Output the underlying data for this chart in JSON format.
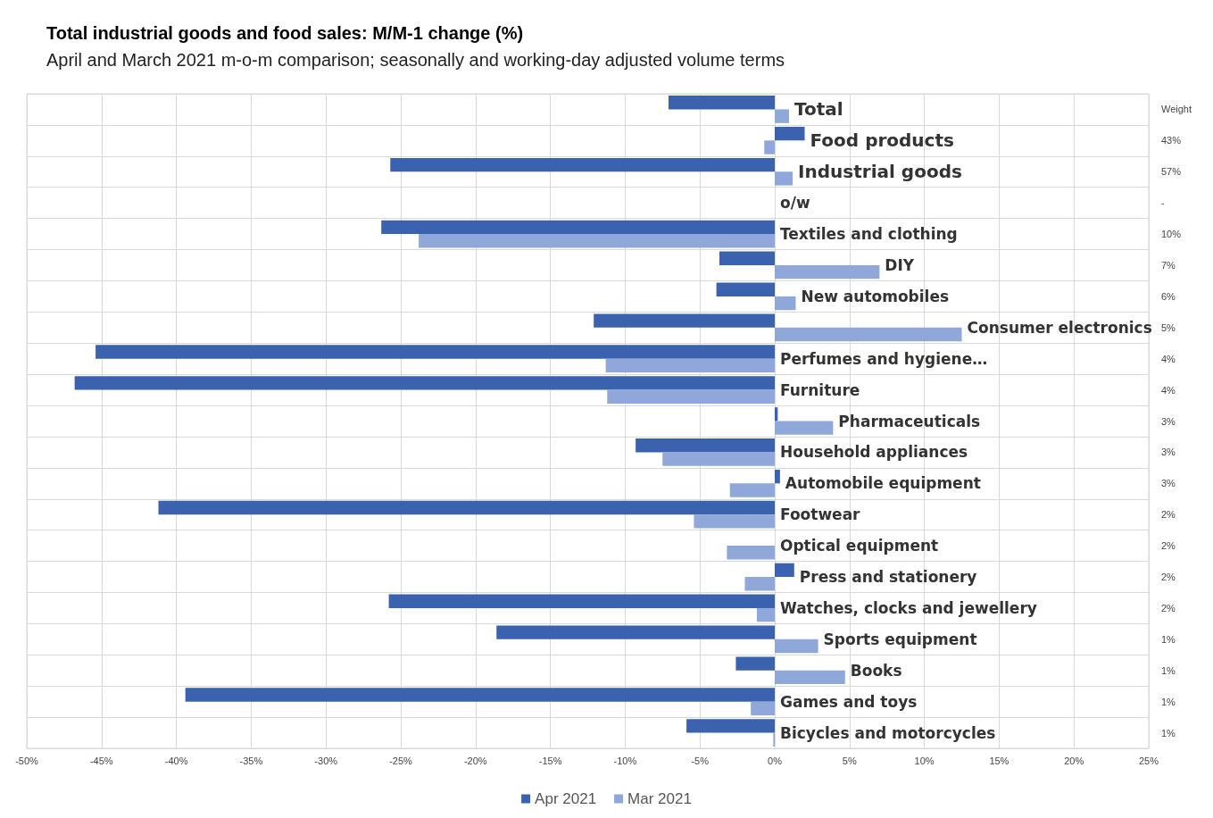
{
  "chart_data": {
    "type": "bar",
    "orientation": "horizontal",
    "title": "Total industrial goods and food sales: M/M-1 change (%)",
    "subtitle": "April and March 2021 m-o-m comparison; seasonally and working-day adjusted volume terms",
    "categories": [
      "Total",
      "Food products",
      "Industrial goods",
      "o/w",
      "Textiles and clothing",
      "DIY",
      "New automobiles",
      "Consumer electronics",
      "Perfumes and hygiene…",
      "Furniture",
      "Pharmaceuticals",
      "Household appliances",
      "Automobile equipment",
      "Footwear",
      "Optical equipment",
      "Press and stationery",
      "Watches, clocks and jewellery",
      "Sports equipment",
      "Books",
      "Games and toys",
      "Bicycles and motorcycles"
    ],
    "y2_categories": [
      "Weight",
      "43%",
      "57%",
      "-",
      "10%",
      "7%",
      "6%",
      "5%",
      "4%",
      "4%",
      "3%",
      "3%",
      "3%",
      "2%",
      "2%",
      "2%",
      "2%",
      "1%",
      "1%",
      "1%",
      "1%"
    ],
    "series": [
      {
        "name": "Apr 2021",
        "color": "#3a62ae",
        "values": [
          -7.1,
          2.0,
          -25.7,
          null,
          -26.3,
          -3.7,
          -3.9,
          -12.1,
          -45.4,
          -46.8,
          0.2,
          -9.3,
          0.35,
          -41.2,
          0,
          1.3,
          -25.8,
          -18.6,
          -2.6,
          -39.4,
          -5.9
        ]
      },
      {
        "name": "Mar 2021",
        "color": "#8fa7d9",
        "values": [
          0.95,
          -0.7,
          1.2,
          null,
          -23.8,
          7.0,
          1.4,
          12.5,
          -11.3,
          -11.2,
          3.9,
          -7.5,
          -3.0,
          -5.4,
          -3.2,
          -2.0,
          -1.2,
          2.9,
          4.7,
          -1.6,
          -0.1
        ]
      }
    ],
    "xlim": [
      -50,
      25
    ],
    "xticks": [
      {
        "value": -50,
        "label": "-50%"
      },
      {
        "value": -45,
        "label": "-45%"
      },
      {
        "value": -40,
        "label": "-40%"
      },
      {
        "value": -35,
        "label": "-35%"
      },
      {
        "value": -30,
        "label": "-30%"
      },
      {
        "value": -25,
        "label": "-25%"
      },
      {
        "value": -20,
        "label": "-20%"
      },
      {
        "value": -15,
        "label": "-15%"
      },
      {
        "value": -10,
        "label": "-10%"
      },
      {
        "value": -5,
        "label": "-5%"
      },
      {
        "value": 0,
        "label": "0%"
      },
      {
        "value": 5,
        "label": "5%"
      },
      {
        "value": 10,
        "label": "10%"
      },
      {
        "value": 15,
        "label": "15%"
      },
      {
        "value": 20,
        "label": "20%"
      },
      {
        "value": 25,
        "label": "25%"
      }
    ],
    "grid": true,
    "legend": "bottom"
  }
}
